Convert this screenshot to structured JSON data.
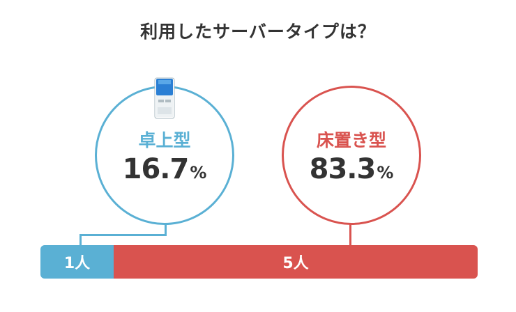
{
  "title": "利用したサーバータイプは？",
  "chart_data": {
    "type": "bar",
    "stacked": true,
    "orientation": "horizontal",
    "title": "利用したサーバータイプは？",
    "categories": [
      "卓上型",
      "床置き型"
    ],
    "percentages": [
      "16.7",
      "83.3"
    ],
    "percent_unit": "%",
    "counts": [
      "1人",
      "5人"
    ],
    "count_values": [
      1,
      5
    ],
    "colors": [
      "#5ab0d4",
      "#d9534f"
    ]
  },
  "icons": {
    "desktop_server": "water-server-icon"
  }
}
